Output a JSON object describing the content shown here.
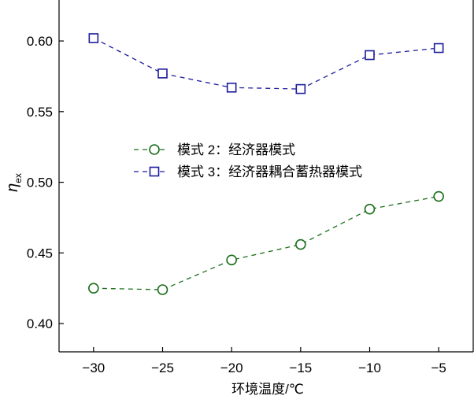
{
  "chart_data": {
    "type": "line",
    "title": "",
    "xlabel": "环境温度/℃",
    "ylabel": "η",
    "ylabel_sub": "ex",
    "xlim": [
      -32.5,
      -2.5
    ],
    "ylim": [
      0.38,
      0.629
    ],
    "grid": false,
    "legend_position": "center-left",
    "x": [
      -30,
      -25,
      -20,
      -15,
      -10,
      -5
    ],
    "x_ticks": [
      -30,
      -25,
      -20,
      -15,
      -10,
      -5
    ],
    "x_tick_labels": [
      "−30",
      "−25",
      "−20",
      "−15",
      "−10",
      "−5"
    ],
    "y_ticks": [
      0.4,
      0.45,
      0.5,
      0.55,
      0.6
    ],
    "y_tick_labels": [
      "0.40",
      "0.45",
      "0.50",
      "0.55",
      "0.60"
    ],
    "series": [
      {
        "name": "模式 2：经济器模式",
        "marker": "circle",
        "color": "#1a6e1a",
        "values": [
          0.425,
          0.424,
          0.445,
          0.456,
          0.481,
          0.49
        ]
      },
      {
        "name": "模式 3：经济器耦合蓄热器模式",
        "marker": "square",
        "color": "#1c1c9c",
        "values": [
          0.602,
          0.577,
          0.567,
          0.566,
          0.59,
          0.595
        ]
      }
    ]
  }
}
